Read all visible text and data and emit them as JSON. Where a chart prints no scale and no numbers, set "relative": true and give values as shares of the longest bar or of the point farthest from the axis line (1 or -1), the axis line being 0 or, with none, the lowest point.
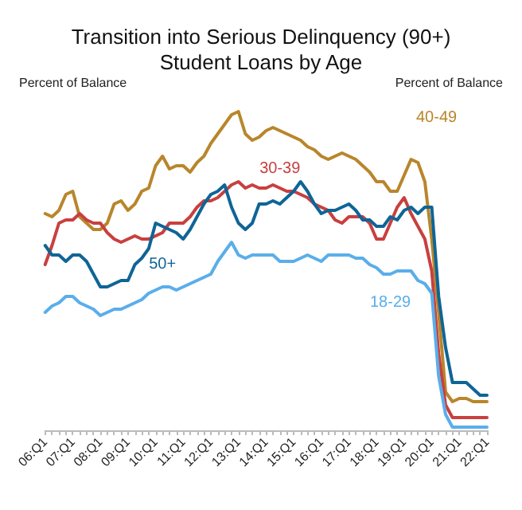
{
  "chart_data": {
    "type": "line",
    "title": "Transition into Serious Delinquency (90+)\nStudent Loans by Age",
    "ylabel": "Percent of Balance",
    "y2label": "Percent of Balance",
    "relative": true,
    "legend": false,
    "grid": false,
    "marker": "none",
    "line_style": "solid",
    "categories": [
      "06:Q1",
      null,
      null,
      null,
      "07:Q1",
      null,
      null,
      null,
      "08:Q1",
      null,
      null,
      null,
      "09:Q1",
      null,
      null,
      null,
      "10:Q1",
      null,
      null,
      null,
      "11:Q1",
      null,
      null,
      null,
      "12:Q1",
      null,
      null,
      null,
      "13:Q1",
      null,
      null,
      null,
      "14:Q1",
      null,
      null,
      null,
      "15:Q1",
      null,
      null,
      null,
      "16:Q1",
      null,
      null,
      null,
      "17:Q1",
      null,
      null,
      null,
      "18:Q1",
      null,
      null,
      null,
      "19:Q1",
      null,
      null,
      null,
      "20:Q1",
      null,
      null,
      null,
      "21:Q1",
      null,
      null,
      null,
      "22:Q1"
    ],
    "series": [
      {
        "name": "40-49",
        "color": "#b8862b",
        "values": [
          0.68,
          0.67,
          0.69,
          0.74,
          0.75,
          0.67,
          0.65,
          0.63,
          0.63,
          0.65,
          0.71,
          0.72,
          0.69,
          0.71,
          0.75,
          0.76,
          0.83,
          0.86,
          0.82,
          0.83,
          0.83,
          0.81,
          0.84,
          0.86,
          0.9,
          0.93,
          0.96,
          0.99,
          1.0,
          0.93,
          0.91,
          0.92,
          0.94,
          0.95,
          0.94,
          0.93,
          0.92,
          0.91,
          0.89,
          0.88,
          0.86,
          0.85,
          0.86,
          0.87,
          0.86,
          0.85,
          0.83,
          0.81,
          0.78,
          0.78,
          0.75,
          0.75,
          0.8,
          0.85,
          0.84,
          0.78,
          0.6,
          0.37,
          0.12,
          0.09,
          0.1,
          0.1,
          0.09,
          0.09,
          0.09
        ]
      },
      {
        "name": "30-39",
        "color": "#c8403f",
        "values": [
          0.52,
          0.58,
          0.65,
          0.66,
          0.66,
          0.68,
          0.66,
          0.65,
          0.65,
          0.62,
          0.6,
          0.59,
          0.6,
          0.61,
          0.6,
          0.6,
          0.61,
          0.62,
          0.65,
          0.65,
          0.65,
          0.67,
          0.7,
          0.72,
          0.72,
          0.73,
          0.75,
          0.77,
          0.78,
          0.76,
          0.77,
          0.76,
          0.76,
          0.77,
          0.76,
          0.75,
          0.75,
          0.74,
          0.73,
          0.71,
          0.7,
          0.69,
          0.66,
          0.65,
          0.67,
          0.67,
          0.67,
          0.65,
          0.6,
          0.6,
          0.65,
          0.7,
          0.73,
          0.68,
          0.64,
          0.6,
          0.5,
          0.24,
          0.08,
          0.04,
          0.04,
          0.04,
          0.04,
          0.04,
          0.04
        ]
      },
      {
        "name": "50+",
        "color": "#0e6596",
        "values": [
          0.58,
          0.55,
          0.55,
          0.53,
          0.55,
          0.55,
          0.53,
          0.49,
          0.45,
          0.45,
          0.46,
          0.47,
          0.47,
          0.52,
          0.54,
          0.57,
          0.65,
          0.64,
          0.63,
          0.62,
          0.6,
          0.63,
          0.67,
          0.71,
          0.74,
          0.75,
          0.77,
          0.7,
          0.65,
          0.63,
          0.65,
          0.71,
          0.71,
          0.72,
          0.71,
          0.73,
          0.75,
          0.78,
          0.75,
          0.71,
          0.68,
          0.69,
          0.69,
          0.7,
          0.71,
          0.69,
          0.66,
          0.66,
          0.64,
          0.64,
          0.67,
          0.66,
          0.69,
          0.7,
          0.68,
          0.7,
          0.7,
          0.42,
          0.26,
          0.15,
          0.15,
          0.15,
          0.13,
          0.11,
          0.11
        ]
      },
      {
        "name": "18-29",
        "color": "#5aaeea",
        "values": [
          0.37,
          0.39,
          0.4,
          0.42,
          0.42,
          0.4,
          0.39,
          0.38,
          0.36,
          0.37,
          0.38,
          0.38,
          0.39,
          0.4,
          0.41,
          0.43,
          0.44,
          0.45,
          0.45,
          0.44,
          0.45,
          0.46,
          0.47,
          0.48,
          0.49,
          0.53,
          0.56,
          0.59,
          0.55,
          0.54,
          0.55,
          0.55,
          0.55,
          0.55,
          0.53,
          0.53,
          0.53,
          0.54,
          0.55,
          0.54,
          0.53,
          0.55,
          0.55,
          0.55,
          0.55,
          0.54,
          0.54,
          0.52,
          0.51,
          0.49,
          0.49,
          0.5,
          0.5,
          0.5,
          0.47,
          0.46,
          0.43,
          0.17,
          0.05,
          0.01,
          0.01,
          0.01,
          0.01,
          0.01,
          0.01
        ]
      }
    ]
  }
}
